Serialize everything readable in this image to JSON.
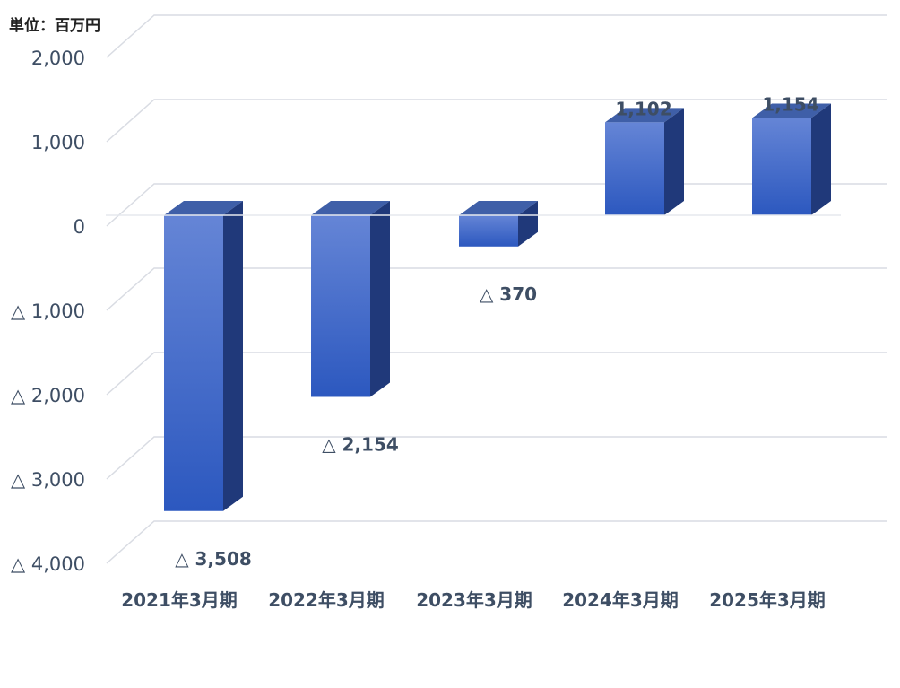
{
  "unit_label": "単位：百万円",
  "colors": {
    "front_top": "#6585d6",
    "front_bottom": "#2c58bf",
    "side": "#20397a",
    "top": "#3f5fa8",
    "grid": "#d9dce3",
    "text": "#3e4e64"
  },
  "chart_data": {
    "type": "bar",
    "title": "",
    "xlabel": "",
    "ylabel": "",
    "categories": [
      "2021年3月期",
      "2022年3月期",
      "2023年3月期",
      "2024年3月期",
      "2025年3月期"
    ],
    "values": [
      -3508,
      -2154,
      -370,
      1102,
      1154
    ],
    "data_labels": [
      "△ 3,508",
      "△ 2,154",
      "△ 370",
      "1,102",
      "1,154"
    ],
    "ylim": [
      -4000,
      2000
    ],
    "yticks": [
      2000,
      1000,
      0,
      -1000,
      -2000,
      -3000,
      -4000
    ],
    "ytick_labels": [
      "2,000",
      "1,000",
      "0",
      "△ 1,000",
      "△ 2,000",
      "△ 3,000",
      "△ 4,000"
    ],
    "grid": true,
    "legend": "none",
    "style": "3d-column"
  }
}
